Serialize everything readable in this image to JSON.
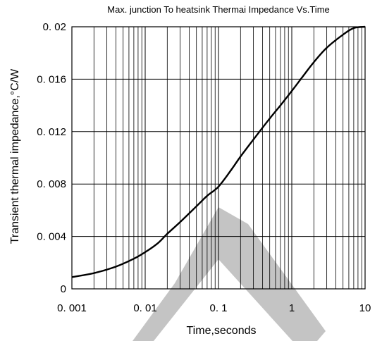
{
  "chart_data": {
    "type": "line",
    "title": "Max. junction To heatsink Thermai Impedance Vs.Time",
    "xlabel": "Time,seconds",
    "ylabel": "Transient thermal impedance,°C/W",
    "x_scale": "log",
    "xlim": [
      0.001,
      10
    ],
    "ylim": [
      0,
      0.02
    ],
    "grid": true,
    "x_ticks": [
      0.001,
      0.01,
      0.1,
      1,
      10
    ],
    "x_tick_labels": [
      "0. 001",
      "0. 01",
      "0. 1",
      "1",
      "10"
    ],
    "y_ticks": [
      0,
      0.004,
      0.008,
      0.012,
      0.016,
      0.02
    ],
    "y_tick_labels": [
      "0",
      "0. 004",
      "0. 008",
      "0. 012",
      "0. 016",
      "0. 02"
    ],
    "series": [
      {
        "x": [
          0.001,
          0.002,
          0.004,
          0.007,
          0.01,
          0.015,
          0.02,
          0.03,
          0.05,
          0.07,
          0.1,
          0.15,
          0.2,
          0.3,
          0.5,
          0.7,
          1,
          1.5,
          2,
          3,
          5,
          7,
          10
        ],
        "y": [
          0.0009,
          0.0012,
          0.0017,
          0.0023,
          0.0028,
          0.0035,
          0.0042,
          0.0051,
          0.0063,
          0.0071,
          0.0078,
          0.0091,
          0.0101,
          0.0114,
          0.013,
          0.014,
          0.0151,
          0.0164,
          0.0173,
          0.0184,
          0.0194,
          0.0199,
          0.02
        ]
      }
    ],
    "colors": {
      "line": "#000000",
      "grid": "#000000",
      "background": "#ffffff",
      "watermark": "#bdbdbd"
    }
  }
}
